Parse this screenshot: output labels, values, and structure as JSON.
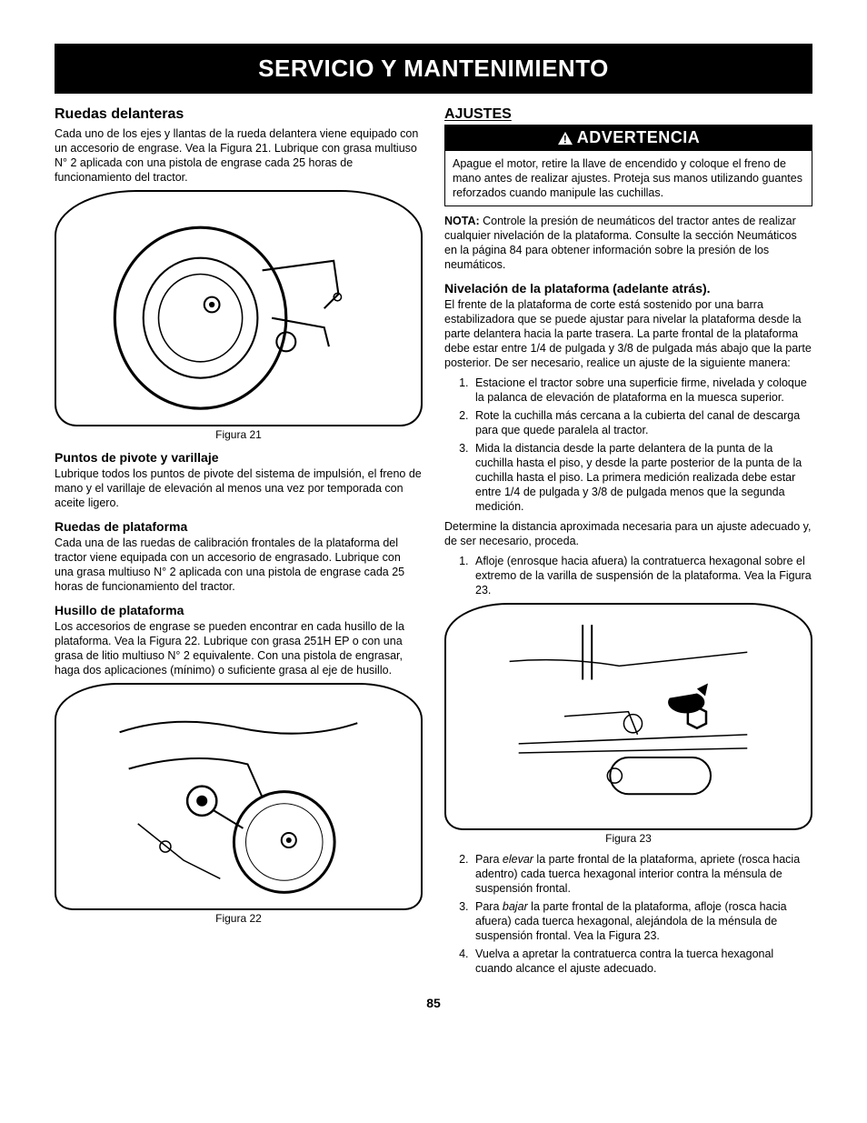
{
  "page_number": "85",
  "title_bar": "SERVICIO Y MANTENIMIENTO",
  "colors": {
    "bar_bg": "#000000",
    "bar_fg": "#ffffff",
    "text": "#000000",
    "page_bg": "#ffffff"
  },
  "left": {
    "h_ruedas_delanteras": "Ruedas delanteras",
    "p_ruedas_delanteras": "Cada uno de los ejes y llantas de la rueda delantera viene equipado con un accesorio de engrase. Vea la Figura 21. Lubrique con grasa multiuso N° 2 aplicada con una pistola de engrase cada 25 horas de funcionamiento del tractor.",
    "fig21_caption": "Figura 21",
    "fig21_alt": "front-wheel-grease-illustration",
    "h_puntos": "Puntos de pivote y varillaje",
    "p_puntos": "Lubrique todos los puntos de pivote del sistema de impulsión, el freno de mano y el varillaje de elevación al menos una vez por temporada con aceite ligero.",
    "h_ruedas_plataforma": "Ruedas de plataforma",
    "p_ruedas_plataforma": "Cada una de las ruedas de calibración frontales de la plataforma del tractor viene equipada con un accesorio de engrasado. Lubrique con una grasa multiuso N° 2 aplicada con una pistola de engrase cada 25 horas de funcionamiento del tractor.",
    "h_husillo": "Husillo de plataforma",
    "p_husillo": "Los accesorios de engrase se pueden encontrar en cada husillo de la plataforma. Vea la Figura 22. Lubrique con grasa 251H EP o con una grasa de litio multiuso N° 2 equivalente. Con una pistola de engrasar, haga dos aplicaciones (mínimo) o suficiente grasa al eje de husillo.",
    "fig22_caption": "Figura 22",
    "fig22_alt": "deck-spindle-grease-illustration"
  },
  "right": {
    "h_ajustes": "AJUSTES",
    "warning_label": "ADVERTENCIA",
    "warning_body": "Apague el motor, retire la llave de encendido y coloque el freno de mano antes de realizar ajustes. Proteja sus manos utilizando guantes reforzados cuando manipule las cuchillas.",
    "nota_label": "NOTA:",
    "nota_body": " Controle la presión de neumáticos del tractor antes de realizar cualquier nivelación de la plataforma. Consulte la sección Neumáticos en la página 84 para obtener información sobre la presión de los neumáticos.",
    "h_nivelacion": "Nivelación de la plataforma (adelante atrás).",
    "p_nivelacion": "El frente de la plataforma de corte está sostenido por una barra estabilizadora que se puede ajustar para nivelar la plataforma desde la parte delantera hacia la parte trasera. La parte frontal de la plataforma debe estar entre 1/4 de pulgada y 3/8 de pulgada más abajo que la parte posterior. De ser necesario, realice un ajuste de la siguiente manera:",
    "steps1": [
      "Estacione el tractor sobre una superficie firme, nivelada y coloque la palanca de elevación de plataforma en la muesca superior.",
      "Rote la cuchilla más cercana a la cubierta del canal de descarga para que quede paralela al tractor.",
      "Mida la distancia desde la parte delantera de la punta de la cuchilla hasta el piso, y desde la parte posterior de la punta de la cuchilla hasta el piso. La primera medición realizada debe estar entre 1/4 de pulgada y 3/8 de pulgada menos que la segunda medición."
    ],
    "p_determine": "Determine la distancia aproximada necesaria para un ajuste adecuado y, de ser necesario, proceda.",
    "steps2": [
      "Afloje (enrosque hacia afuera) la contratuerca hexagonal sobre el extremo de la varilla de suspensión de la plataforma. Vea la Figura 23."
    ],
    "fig23_caption": "Figura 23",
    "fig23_alt": "deck-leveling-nut-illustration",
    "steps3": [
      {
        "prefix": "Para ",
        "italic": "elevar",
        "rest": " la parte frontal de la plataforma, apriete (rosca hacia adentro) cada tuerca hexagonal interior contra la ménsula de suspensión frontal."
      },
      {
        "prefix": "Para ",
        "italic": "bajar",
        "rest": " la parte frontal de la plataforma, afloje (rosca hacia afuera) cada tuerca hexagonal, alejándola de la ménsula de suspensión frontal. Vea la Figura 23."
      },
      {
        "prefix": "",
        "italic": "",
        "rest": "Vuelva a apretar la contratuerca contra la tuerca hexagonal cuando alcance el ajuste adecuado."
      }
    ]
  }
}
